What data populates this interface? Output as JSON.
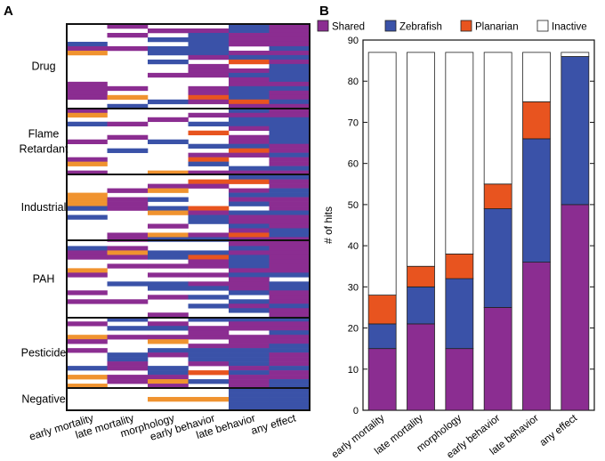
{
  "colors": {
    "shared": "#8b2d91",
    "zebrafish": "#3a52a8",
    "planarian": "#e8541f",
    "planarian_light": "#f0932f",
    "inactive": "#ffffff",
    "axis": "#111111"
  },
  "chart_data": [
    {
      "panel": "A",
      "type": "heatmap",
      "columns": [
        "early mortality",
        "late mortality",
        "morphology",
        "early behavior",
        "late behavior",
        "any effect"
      ],
      "groups": [
        {
          "label": "Drug"
        },
        {
          "label": "Flame\nRetardant"
        },
        {
          "label": "Industrial"
        },
        {
          "label": "PAH"
        },
        {
          "label": "Pesticide"
        },
        {
          "label": "Negative"
        }
      ],
      "legend": [
        "Shared",
        "Zebrafish",
        "Planarian",
        "Inactive"
      ]
    },
    {
      "panel": "B",
      "type": "bar",
      "stacked": true,
      "categories": [
        "early mortality",
        "late mortality",
        "morphology",
        "early behavior",
        "late behavior",
        "any effect"
      ],
      "series": [
        {
          "name": "Shared",
          "key": "shared",
          "values": [
            15,
            21,
            15,
            25,
            36,
            50
          ]
        },
        {
          "name": "Zebrafish",
          "key": "zebrafish",
          "values": [
            6,
            9,
            17,
            24,
            30,
            36
          ]
        },
        {
          "name": "Planarian",
          "key": "planarian",
          "values": [
            7,
            5,
            6,
            6,
            9,
            0
          ]
        },
        {
          "name": "Inactive",
          "key": "inactive",
          "values": [
            59,
            52,
            49,
            32,
            12,
            1
          ]
        }
      ],
      "ylabel": "# of hits",
      "ylim": [
        0,
        90
      ],
      "yticks": [
        0,
        10,
        20,
        30,
        40,
        50,
        60,
        70,
        80,
        90
      ],
      "legend": [
        "Shared",
        "Zebrafish",
        "Planarian",
        "Inactive"
      ]
    }
  ]
}
